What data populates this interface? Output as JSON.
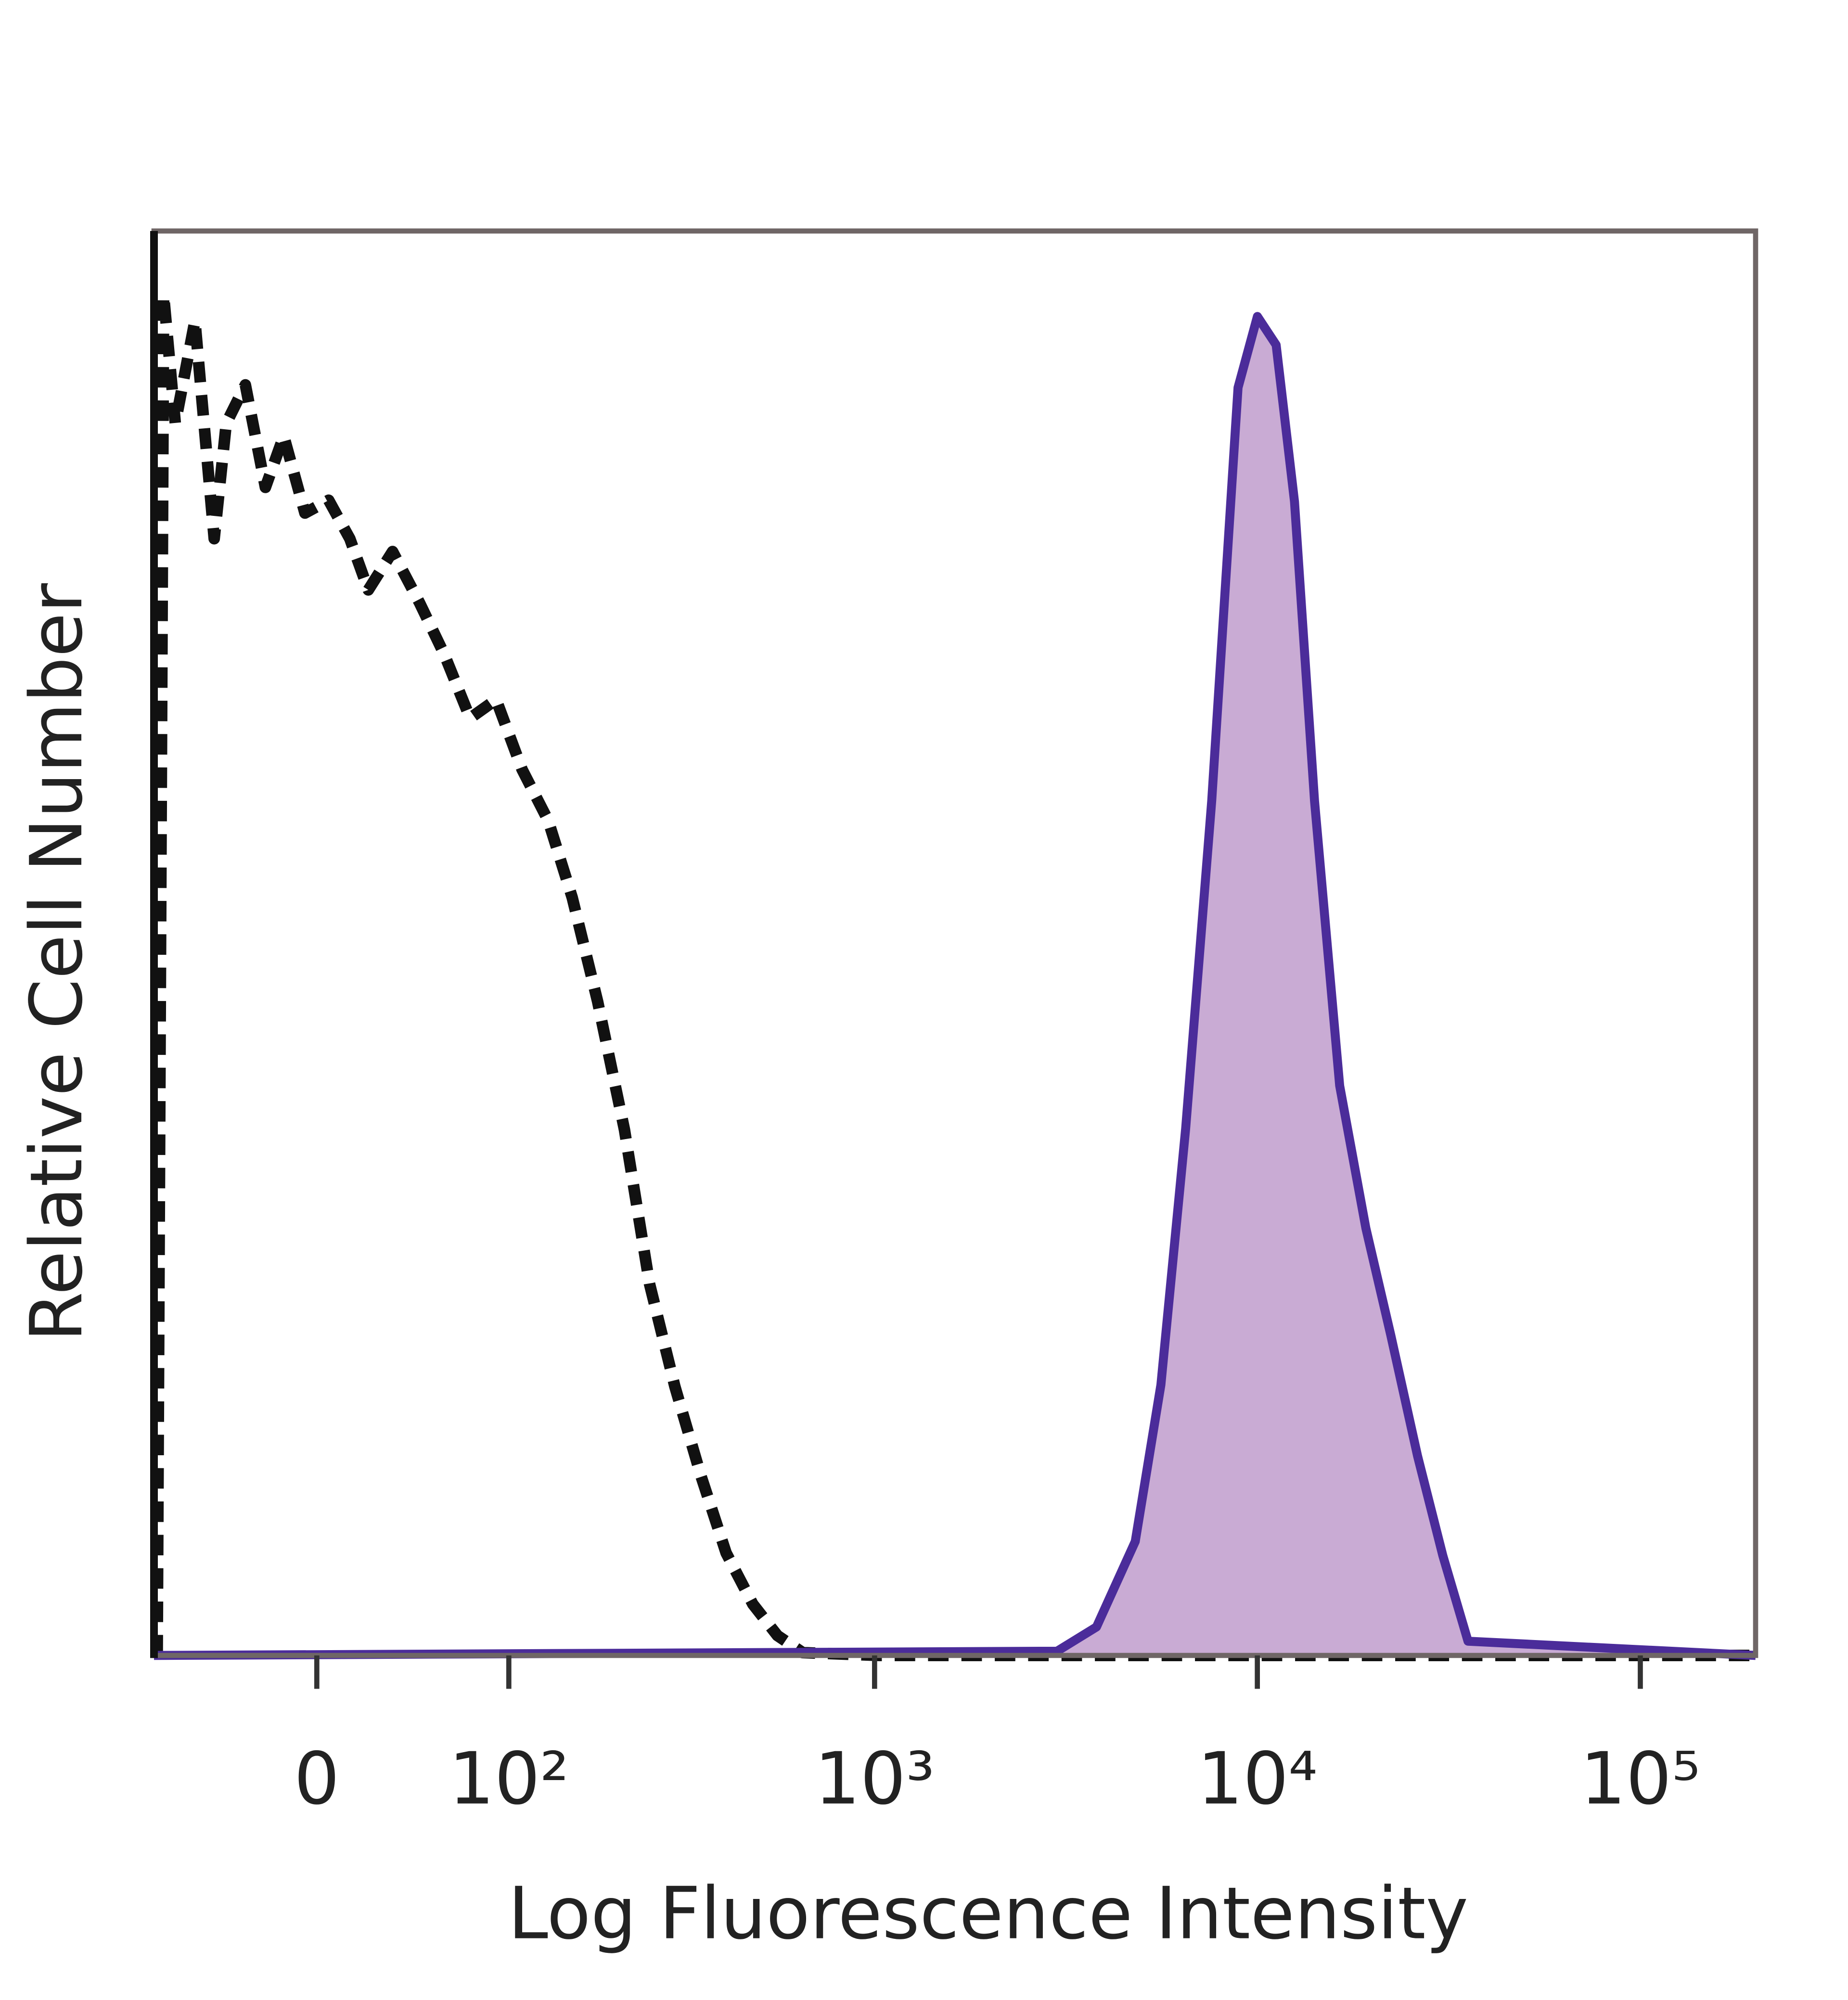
{
  "chart_data": {
    "type": "histogram-overlay",
    "xlabel": "Log Fluorescence Intensity",
    "ylabel": "Relative Cell Number",
    "xscale": "arcsinh",
    "xlim": [
      -80,
      200000
    ],
    "ylim": [
      0,
      100
    ],
    "xticks": [
      {
        "value": 0,
        "label": "0"
      },
      {
        "value": 100,
        "label": "10²"
      },
      {
        "value": 1000,
        "label": "10³"
      },
      {
        "value": 10000,
        "label": "10⁴"
      },
      {
        "value": 100000,
        "label": "10⁵"
      }
    ],
    "series": [
      {
        "color": "#111111",
        "style": "dashed",
        "x": [
          -78,
          -74,
          -67,
          -56,
          -46,
          -40,
          -31,
          -22,
          -14,
          -5,
          5,
          14,
          22,
          33,
          46,
          59,
          74,
          91,
          110,
          132,
          155,
          183,
          217,
          254,
          297,
          349,
          407,
          479,
          556,
          648,
          1029,
          200000
        ],
        "values": [
          0,
          95.5,
          86.5,
          93.7,
          78.4,
          86.5,
          89.2,
          82,
          85.6,
          80.2,
          81.1,
          78.4,
          74.8,
          77.5,
          73.9,
          70.3,
          65.8,
          67.1,
          62.2,
          58.6,
          53.2,
          45.9,
          36.9,
          26.1,
          18.9,
          12.6,
          7.2,
          3.6,
          1.4,
          0.2,
          0,
          0
        ]
      },
      {
        "color": "#4b2c9a",
        "fill": "#c9abd4",
        "style": "solid",
        "x": [
          -80,
          3000,
          3800,
          4800,
          5600,
          6500,
          7600,
          8900,
          10000,
          11200,
          12500,
          14100,
          16400,
          19200,
          22300,
          26200,
          30500,
          35500,
          200000
        ],
        "values": [
          0,
          0.3,
          2,
          8,
          19,
          37,
          60,
          89,
          94,
          92,
          81,
          60,
          40,
          30,
          22.5,
          14,
          7,
          1,
          0
        ]
      }
    ]
  }
}
